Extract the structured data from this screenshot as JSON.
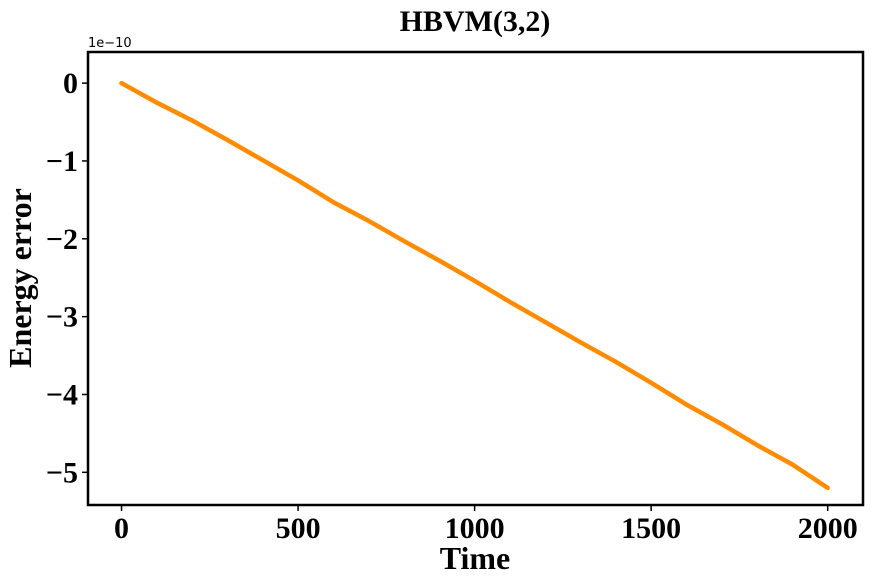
{
  "chart_data": {
    "type": "line",
    "title": "HBVM(3,2)",
    "xlabel": "Time",
    "ylabel": "Energy error",
    "y_offset_label": "1e−10",
    "xlim": [
      -95,
      2100
    ],
    "ylim": [
      -5.42,
      0.4
    ],
    "x_ticks": [
      0,
      500,
      1000,
      1500,
      2000
    ],
    "x_tick_labels": [
      "0",
      "500",
      "1000",
      "1500",
      "2000"
    ],
    "y_ticks": [
      0,
      -1,
      -2,
      -3,
      -4,
      -5
    ],
    "y_tick_labels": [
      "0",
      "−1",
      "−2",
      "−3",
      "−4",
      "−5"
    ],
    "grid": false,
    "series": [
      {
        "color": "#ff8c00",
        "x": [
          0,
          100,
          200,
          300,
          400,
          500,
          600,
          700,
          800,
          900,
          1000,
          1100,
          1200,
          1300,
          1400,
          1500,
          1600,
          1700,
          1800,
          1900,
          2000
        ],
        "y": [
          0,
          -0.25,
          -0.48,
          -0.73,
          -0.99,
          -1.25,
          -1.53,
          -1.77,
          -2.03,
          -2.28,
          -2.54,
          -2.81,
          -3.07,
          -3.33,
          -3.58,
          -3.85,
          -4.13,
          -4.38,
          -4.65,
          -4.9,
          -5.2
        ]
      }
    ]
  }
}
